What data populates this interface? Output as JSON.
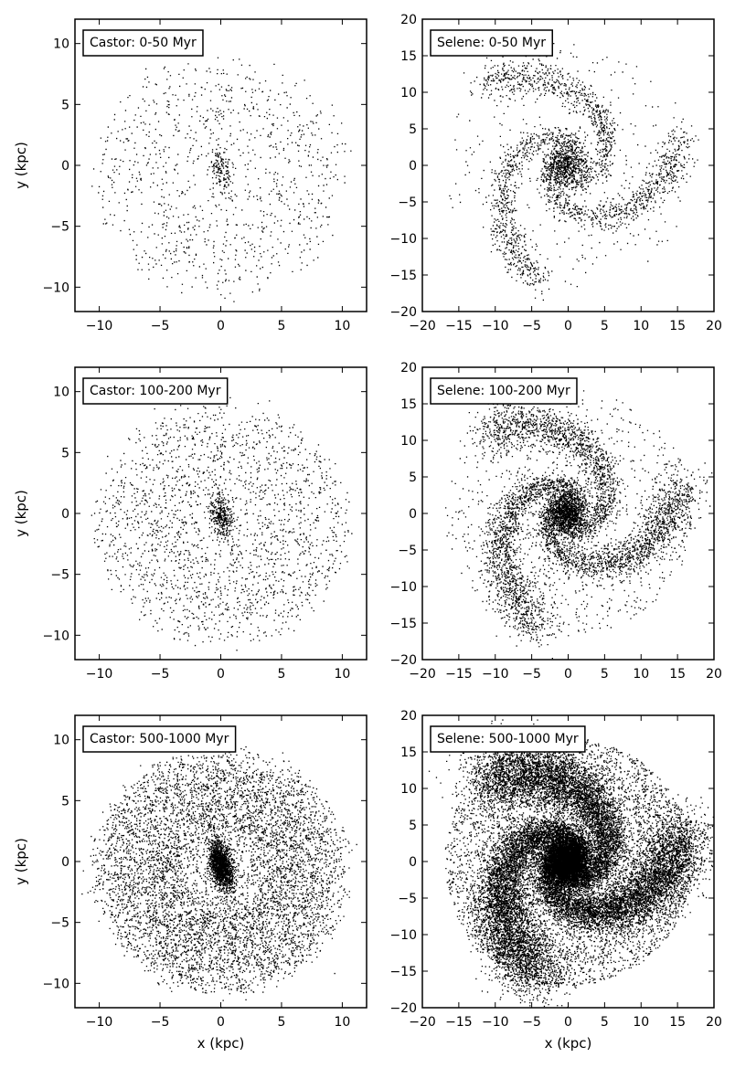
{
  "chart_data": [
    {
      "type": "scatter",
      "galaxy": "castor",
      "title": "Castor: 0-50 Myr",
      "xlim": [
        -12,
        12
      ],
      "ylim": [
        -12,
        12
      ],
      "xticks": [
        -10,
        -5,
        0,
        5,
        10
      ],
      "yticks": [
        -10,
        -5,
        0,
        5,
        10
      ],
      "xlabel": "",
      "ylabel": "y (kpc)",
      "legend": "top-left",
      "grid": false,
      "density": {
        "disk_points": 1000,
        "bulge_points": 150,
        "spread": 0.35
      },
      "color": "#000000"
    },
    {
      "type": "scatter",
      "galaxy": "selene",
      "title": "Selene: 0-50 Myr",
      "xlim": [
        -20,
        20
      ],
      "ylim": [
        -20,
        20
      ],
      "xticks": [
        -20,
        -15,
        -10,
        -5,
        0,
        5,
        10,
        15,
        20
      ],
      "yticks": [
        -20,
        -15,
        -10,
        -5,
        0,
        5,
        10,
        15,
        20
      ],
      "xlabel": "",
      "ylabel": "",
      "legend": "top-left",
      "grid": false,
      "density": {
        "disk_points": 2200,
        "bulge_points": 700,
        "spread": 0.12
      },
      "color": "#000000"
    },
    {
      "type": "scatter",
      "galaxy": "castor",
      "title": "Castor: 100-200 Myr",
      "xlim": [
        -12,
        12
      ],
      "ylim": [
        -12,
        12
      ],
      "xticks": [
        -10,
        -5,
        0,
        5,
        10
      ],
      "yticks": [
        -10,
        -5,
        0,
        5,
        10
      ],
      "xlabel": "",
      "ylabel": "y (kpc)",
      "legend": "top-left",
      "grid": false,
      "density": {
        "disk_points": 2000,
        "bulge_points": 350,
        "spread": 0.35
      },
      "color": "#000000"
    },
    {
      "type": "scatter",
      "galaxy": "selene",
      "title": "Selene: 100-200 Myr",
      "xlim": [
        -20,
        20
      ],
      "ylim": [
        -20,
        20
      ],
      "xticks": [
        -20,
        -15,
        -10,
        -5,
        0,
        5,
        10,
        15,
        20
      ],
      "yticks": [
        -20,
        -15,
        -10,
        -5,
        0,
        5,
        10,
        15,
        20
      ],
      "xlabel": "",
      "ylabel": "",
      "legend": "top-left",
      "grid": false,
      "density": {
        "disk_points": 4500,
        "bulge_points": 1400,
        "spread": 0.18
      },
      "color": "#000000"
    },
    {
      "type": "scatter",
      "galaxy": "castor",
      "title": "Castor: 500-1000 Myr",
      "xlim": [
        -12,
        12
      ],
      "ylim": [
        -12,
        12
      ],
      "xticks": [
        -10,
        -5,
        0,
        5,
        10
      ],
      "yticks": [
        -10,
        -5,
        0,
        5,
        10
      ],
      "xlabel": "x (kpc)",
      "ylabel": "y (kpc)",
      "legend": "top-left",
      "grid": false,
      "density": {
        "disk_points": 6500,
        "bulge_points": 1500,
        "spread": 0.5
      },
      "color": "#000000"
    },
    {
      "type": "scatter",
      "galaxy": "selene",
      "title": "Selene: 500-1000 Myr",
      "xlim": [
        -20,
        20
      ],
      "ylim": [
        -20,
        20
      ],
      "xticks": [
        -20,
        -15,
        -10,
        -5,
        0,
        5,
        10,
        15,
        20
      ],
      "yticks": [
        -20,
        -15,
        -10,
        -5,
        0,
        5,
        10,
        15,
        20
      ],
      "xlabel": "x (kpc)",
      "ylabel": "",
      "legend": "top-left",
      "grid": false,
      "density": {
        "disk_points": 16000,
        "bulge_points": 6000,
        "spread": 0.3
      },
      "color": "#000000"
    }
  ]
}
